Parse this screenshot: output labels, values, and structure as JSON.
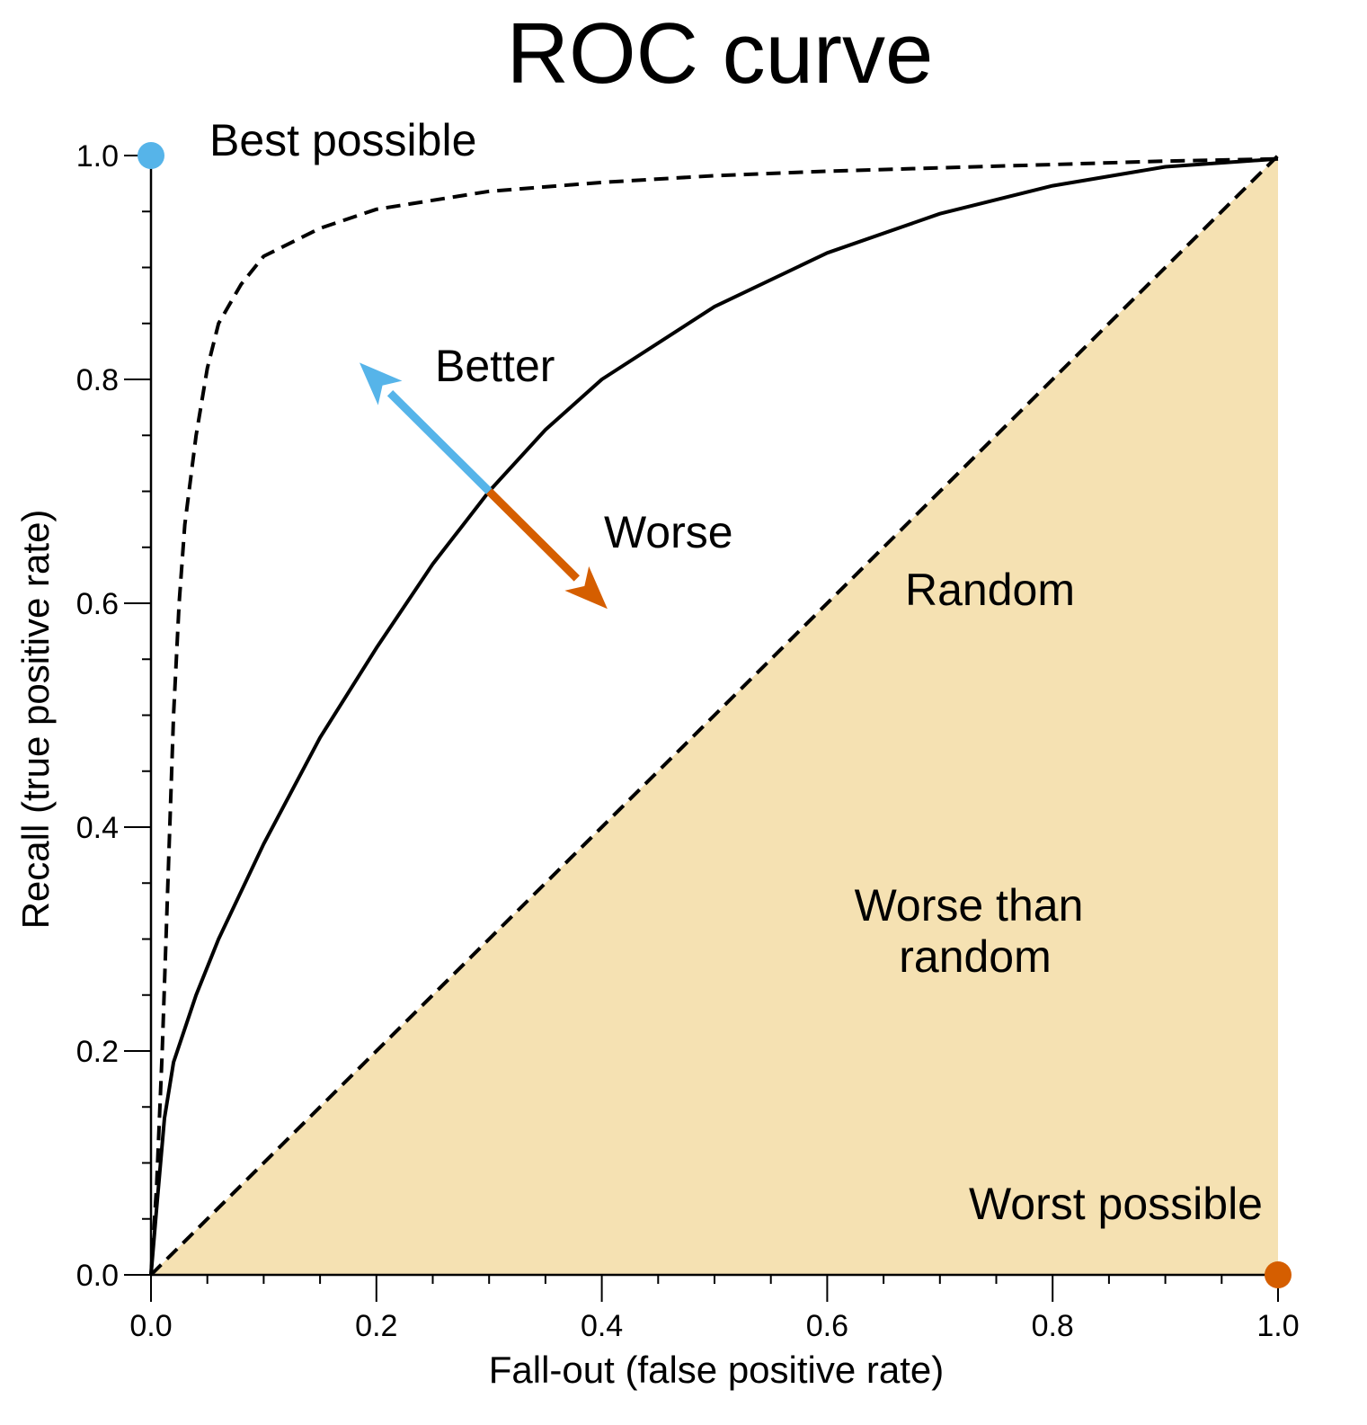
{
  "chart_data": {
    "type": "line",
    "title": "ROC curve",
    "xlabel": "Fall-out (false positive rate)",
    "ylabel": "Recall (true positive rate)",
    "xlim": [
      0,
      1
    ],
    "ylim": [
      0,
      1
    ],
    "x_ticks": [
      "0.0",
      "0.2",
      "0.4",
      "0.6",
      "0.8",
      "1.0"
    ],
    "y_ticks": [
      "0.0",
      "0.2",
      "0.4",
      "0.6",
      "0.8",
      "1.0"
    ],
    "grid": false,
    "series": [
      {
        "style": "dashed",
        "points": [
          [
            0,
            0
          ],
          [
            0.005,
            0.08
          ],
          [
            0.01,
            0.2
          ],
          [
            0.015,
            0.35
          ],
          [
            0.02,
            0.5
          ],
          [
            0.025,
            0.6
          ],
          [
            0.03,
            0.67
          ],
          [
            0.04,
            0.75
          ],
          [
            0.05,
            0.81
          ],
          [
            0.06,
            0.85
          ],
          [
            0.08,
            0.885
          ],
          [
            0.1,
            0.91
          ],
          [
            0.15,
            0.935
          ],
          [
            0.2,
            0.952
          ],
          [
            0.3,
            0.968
          ],
          [
            0.4,
            0.976
          ],
          [
            0.5,
            0.982
          ],
          [
            0.6,
            0.986
          ],
          [
            0.7,
            0.989
          ],
          [
            0.8,
            0.992
          ],
          [
            0.9,
            0.995
          ],
          [
            1,
            0.997
          ]
        ]
      },
      {
        "style": "solid",
        "points": [
          [
            0,
            0
          ],
          [
            0.005,
            0.06
          ],
          [
            0.012,
            0.14
          ],
          [
            0.02,
            0.19
          ],
          [
            0.04,
            0.25
          ],
          [
            0.06,
            0.3
          ],
          [
            0.1,
            0.385
          ],
          [
            0.15,
            0.48
          ],
          [
            0.2,
            0.56
          ],
          [
            0.25,
            0.635
          ],
          [
            0.3,
            0.7
          ],
          [
            0.35,
            0.755
          ],
          [
            0.4,
            0.8
          ],
          [
            0.5,
            0.865
          ],
          [
            0.6,
            0.913
          ],
          [
            0.7,
            0.948
          ],
          [
            0.8,
            0.973
          ],
          [
            0.9,
            0.99
          ],
          [
            1,
            0.997
          ]
        ]
      },
      {
        "name": "Random",
        "style": "dashed",
        "points": [
          [
            0,
            0
          ],
          [
            1,
            1
          ]
        ]
      }
    ],
    "points": [
      {
        "label": "Best possible",
        "x": 0,
        "y": 1,
        "color": "#56b4e9"
      },
      {
        "label": "Worst possible",
        "x": 1,
        "y": 0,
        "color": "#d55e00"
      }
    ],
    "arrows": [
      {
        "label": "Better",
        "from": [
          0.3,
          0.7
        ],
        "to": [
          0.185,
          0.815
        ],
        "color": "#56b4e9"
      },
      {
        "label": "Worse",
        "from": [
          0.3,
          0.7
        ],
        "to": [
          0.405,
          0.595
        ],
        "color": "#d55e00"
      }
    ],
    "shaded_region": {
      "label": "Worse than random",
      "color": "#f5e1b2"
    }
  },
  "annotations": {
    "best": "Best possible",
    "worst": "Worst possible",
    "better": "Better",
    "worse": "Worse",
    "random": "Random",
    "worse_than_random_line1": "Worse than",
    "worse_than_random_line2": "random"
  },
  "colors": {
    "better": "#56b4e9",
    "worse": "#d55e00",
    "shade": "#f5e1b2",
    "line": "#000000"
  }
}
